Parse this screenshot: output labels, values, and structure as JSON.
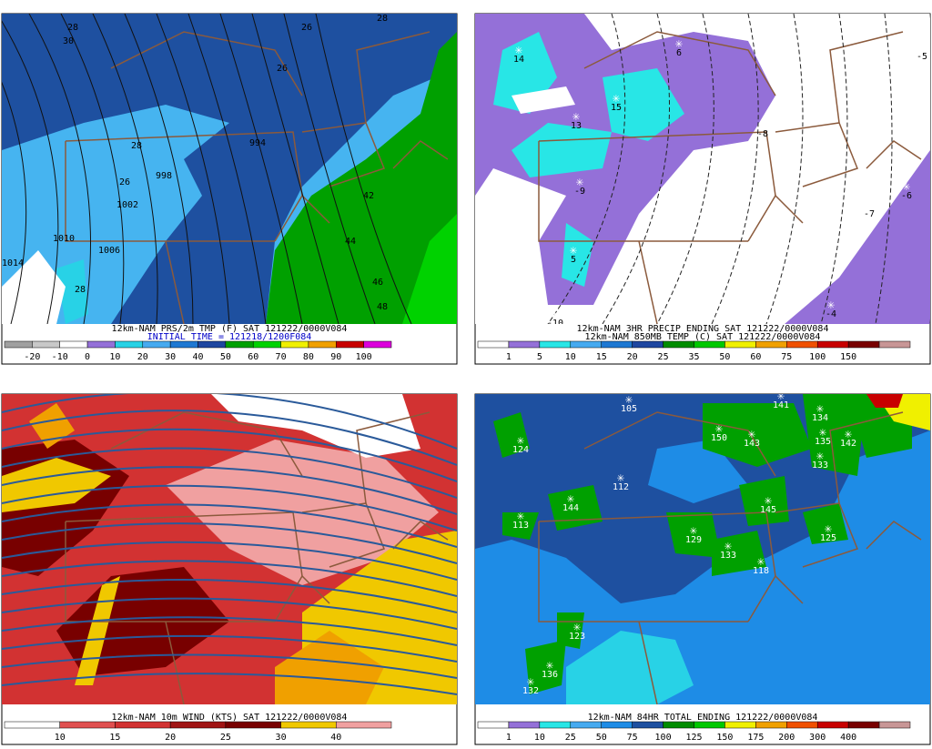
{
  "panels": [
    {
      "captions": [
        "12km-NAM PRS/2m TMP (F) SAT 121222/0000V084",
        "INITIAL TIME = 121218/1200F084"
      ],
      "colorbar": {
        "labels": [
          "-20",
          "-10",
          "0",
          "10",
          "20",
          "30",
          "40",
          "50",
          "60",
          "70",
          "80",
          "90",
          "100"
        ],
        "colors": [
          "#a0a0a0",
          "#c8c8c8",
          "#ffffff",
          "#9470d8",
          "#28d2e6",
          "#46aaf0",
          "#1e78d2",
          "#1e46a0",
          "#00a000",
          "#00d200",
          "#f0f000",
          "#f0a000",
          "#c80000",
          "#dc00dc"
        ]
      },
      "map_labels": [
        "28",
        "30",
        "26",
        "28",
        "26",
        "28",
        "998",
        "26",
        "1002",
        "1010",
        "1014",
        "1006",
        "28",
        "42",
        "44",
        "46",
        "48",
        "994"
      ]
    },
    {
      "captions": [
        "12km-NAM 3HR PRECIP ENDING SAT 121222/0000V084",
        "12km-NAM 850MB TEMP (C) SAT 121222/0000V084"
      ],
      "colorbar": {
        "labels": [
          "1",
          "5",
          "10",
          "15",
          "20",
          "25",
          "35",
          "50",
          "60",
          "75",
          "100",
          "150"
        ],
        "colors": [
          "#ffffff",
          "#9470d8",
          "#28e6e6",
          "#46aaf0",
          "#1e78d2",
          "#1e46a0",
          "#008c00",
          "#00c800",
          "#f0f000",
          "#f0a000",
          "#f05000",
          "#c80000",
          "#780000",
          "#c89696"
        ]
      },
      "map_labels": [
        "14",
        "6",
        "15",
        "13",
        "5",
        "-5",
        "-6",
        "-7",
        "-9",
        "-8",
        "-4",
        "-10"
      ]
    },
    {
      "captions": [
        "12km-NAM 10m WIND (KTS) SAT 121222/0000V084"
      ],
      "colorbar": {
        "labels": [
          "10",
          "15",
          "20",
          "25",
          "30",
          "40"
        ],
        "colors": [
          "#ffffff",
          "#e05050",
          "#d23232",
          "#a01414",
          "#780000",
          "#f0c800",
          "#f0a0a0"
        ]
      },
      "map_labels": []
    },
    {
      "captions": [
        "12km-NAM 84HR TOTAL ENDING 121222/0000V084"
      ],
      "colorbar": {
        "labels": [
          "1",
          "10",
          "25",
          "50",
          "75",
          "100",
          "125",
          "150",
          "175",
          "200",
          "300",
          "400"
        ],
        "colors": [
          "#ffffff",
          "#9470d8",
          "#28e6e6",
          "#46aaf0",
          "#1e8ce6",
          "#1e50a0",
          "#008c00",
          "#00c800",
          "#f0f000",
          "#f0a000",
          "#f05000",
          "#c80000",
          "#780000",
          "#c89696"
        ]
      },
      "map_labels": [
        "105",
        "141",
        "134",
        "124",
        "150",
        "143",
        "135",
        "142",
        "133",
        "112",
        "144",
        "145",
        "113",
        "129",
        "133",
        "118",
        "125",
        "123",
        "136",
        "132"
      ]
    }
  ]
}
